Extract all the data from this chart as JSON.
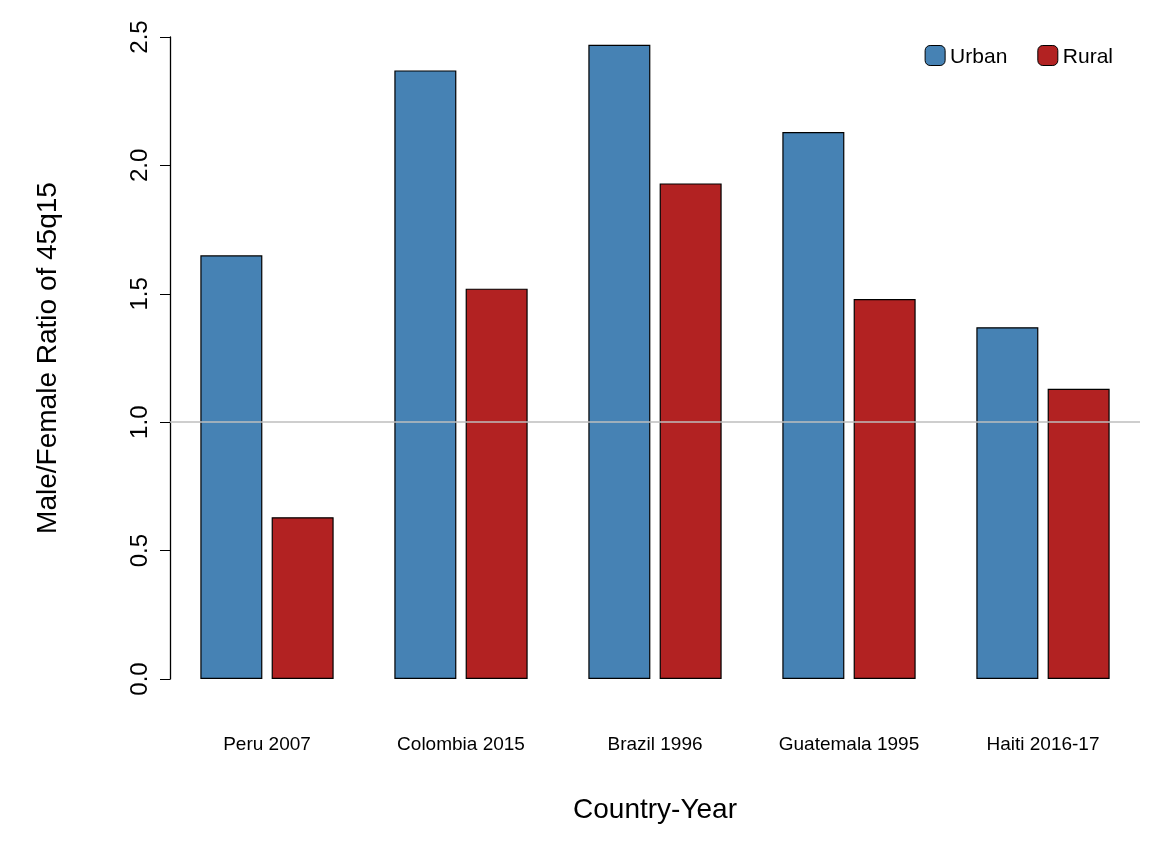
{
  "chart_data": {
    "type": "bar",
    "xlabel": "Country-Year",
    "ylabel": "Male/Female Ratio of 45q15",
    "categories": [
      "Peru 2007",
      "Colombia 2015",
      "Brazil 1996",
      "Guatemala 1995",
      "Haiti 2016-17"
    ],
    "series": [
      {
        "name": "Urban",
        "color": "#4682b4",
        "values": [
          1.65,
          2.37,
          2.47,
          2.13,
          1.37
        ]
      },
      {
        "name": "Rural",
        "color": "#b22222",
        "values": [
          0.63,
          1.52,
          1.93,
          1.48,
          1.13
        ]
      }
    ],
    "ylim": [
      0,
      2.5
    ],
    "yticks": [
      {
        "value": 0,
        "label": "0.0"
      },
      0.5,
      {
        "value": 1,
        "label": "1.0"
      },
      1.5,
      {
        "value": 2,
        "label": "2.0"
      },
      2.5
    ],
    "ref_lines": [
      {
        "axis": "y",
        "value": 1,
        "color": "#bebebe"
      }
    ],
    "grid": false,
    "legend": "top right"
  }
}
